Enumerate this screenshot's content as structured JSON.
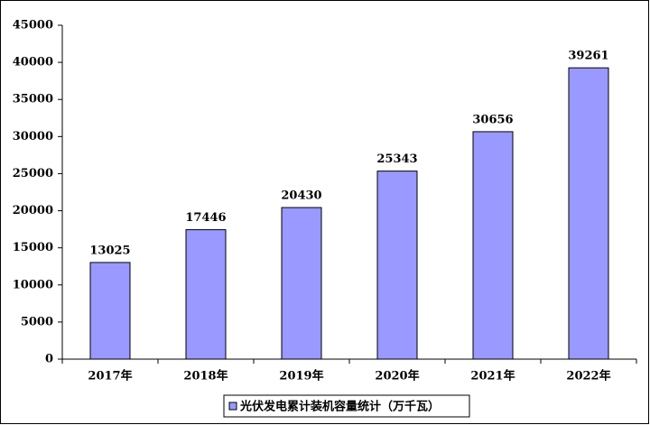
{
  "chart_data": {
    "type": "bar",
    "categories": [
      "2017年",
      "2018年",
      "2019年",
      "2020年",
      "2021年",
      "2022年"
    ],
    "series": [
      {
        "name": "光伏发电累计装机容量统计（万千瓦）",
        "color": "#9999ff",
        "values": [
          13025,
          17446,
          20430,
          25343,
          30656,
          39261
        ]
      }
    ],
    "ylim": [
      0,
      45000
    ],
    "yticks": [
      0,
      5000,
      10000,
      15000,
      20000,
      25000,
      30000,
      35000,
      40000,
      45000
    ],
    "grid": false,
    "legend": "bottom"
  }
}
